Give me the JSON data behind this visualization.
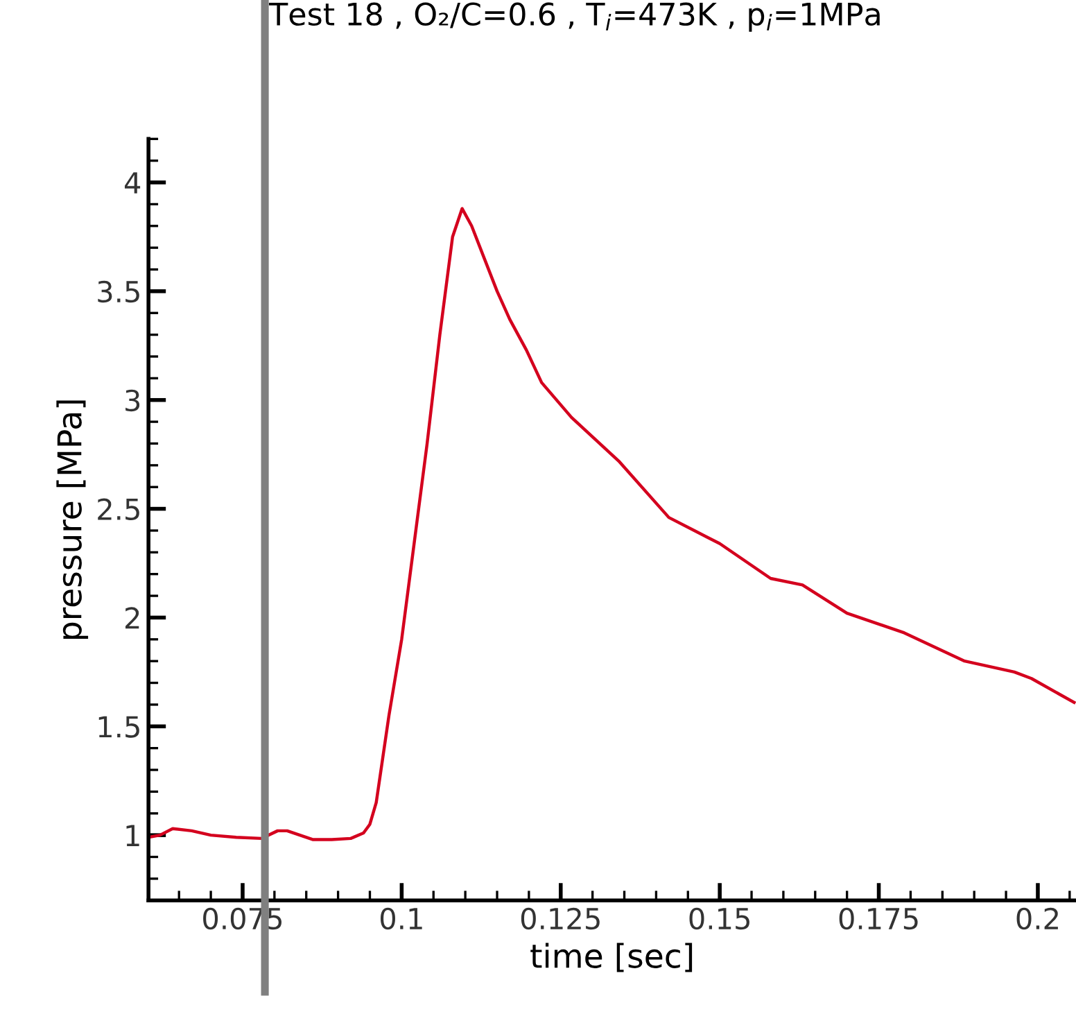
{
  "chart_data": {
    "type": "line",
    "title": "Test 18 , O₂/C=0.6 , T$_{i}$=473K , p$_{i}$=1MPa",
    "xlabel": "time [sec]",
    "ylabel": "pressure [MPa]",
    "x": [
      0.0602,
      0.062,
      0.064,
      0.067,
      0.07,
      0.074,
      0.078,
      0.0805,
      0.082,
      0.084,
      0.086,
      0.089,
      0.092,
      0.094,
      0.095,
      0.096,
      0.097,
      0.098,
      0.1,
      0.102,
      0.104,
      0.106,
      0.108,
      0.1095,
      0.111,
      0.113,
      0.115,
      0.117,
      0.1196,
      0.122,
      0.1267,
      0.1341,
      0.142,
      0.15,
      0.158,
      0.163,
      0.17,
      0.179,
      0.1885,
      0.1963,
      0.199,
      0.2057
    ],
    "series": [
      {
        "color": "#d4001e",
        "values": [
          0.99,
          1.0,
          1.03,
          1.02,
          1.0,
          0.99,
          0.985,
          1.02,
          1.02,
          1.0,
          0.98,
          0.98,
          0.985,
          1.01,
          1.05,
          1.15,
          1.35,
          1.55,
          1.9,
          2.35,
          2.8,
          3.3,
          3.75,
          3.88,
          3.8,
          3.65,
          3.5,
          3.37,
          3.23,
          3.08,
          2.92,
          2.72,
          2.46,
          2.34,
          2.18,
          2.15,
          2.02,
          1.93,
          1.8,
          1.75,
          1.72,
          1.61
        ]
      }
    ],
    "xlim": [
      0.0602,
      0.206
    ],
    "xticks": [
      0.075,
      0.1,
      0.125,
      0.15,
      0.175,
      0.2
    ],
    "ylim": [
      0.7,
      4.2
    ],
    "yticks": [
      1,
      1.5,
      2,
      2.5,
      3,
      3.5,
      4
    ],
    "ref_lines": [
      {
        "axis": "x",
        "value": 0.0785,
        "color": "#808080"
      }
    ],
    "grid": false,
    "legend": false,
    "marker": "none",
    "line_style": "solid"
  }
}
